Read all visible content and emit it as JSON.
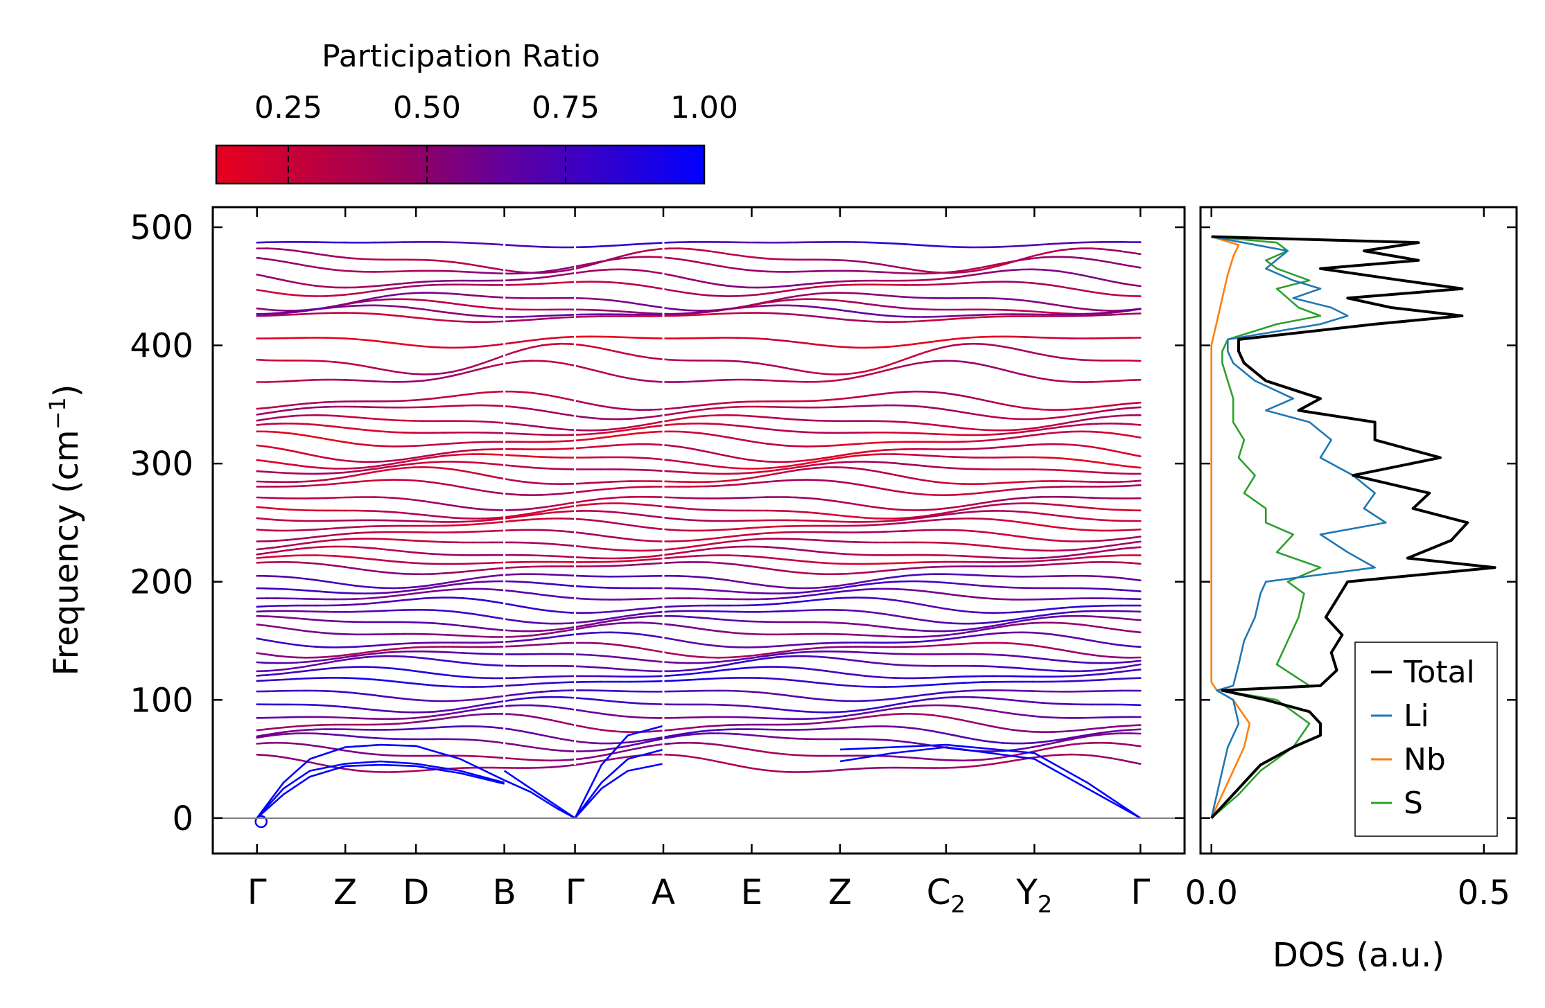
{
  "colors": {
    "low": "#e8001d",
    "high": "#0000ff",
    "axis": "#000000",
    "zero_line": "#808080",
    "total": "#000000",
    "Li": "#1f77b4",
    "Nb": "#ff7f0e",
    "S": "#2ca02c"
  },
  "chart_data": [
    {
      "type": "line",
      "title": "",
      "ylabel": "Frequency (cm",
      "ylabel_sup": "−1",
      "ylabel_close": ")",
      "ylim": [
        -30,
        517
      ],
      "yticks": [
        0,
        100,
        200,
        300,
        400,
        500
      ],
      "ytick_labels": [
        "0",
        "100",
        "200",
        "300",
        "400",
        "500"
      ],
      "xlim": [
        -0.5,
        10.5
      ],
      "kpoints": [
        {
          "label": "Γ",
          "sub": "",
          "x": 0.0
        },
        {
          "label": "Z",
          "sub": "",
          "x": 1.0
        },
        {
          "label": "D",
          "sub": "",
          "x": 1.8
        },
        {
          "label": "B",
          "sub": "",
          "x": 2.8
        },
        {
          "label": "Γ",
          "sub": "",
          "x": 3.6
        },
        {
          "label": "A",
          "sub": "",
          "x": 4.6
        },
        {
          "label": "E",
          "sub": "",
          "x": 5.6
        },
        {
          "label": "Z",
          "sub": "",
          "x": 6.6
        },
        {
          "label": "C",
          "sub": "2",
          "x": 7.8
        },
        {
          "label": "Y",
          "sub": "2",
          "x": 8.8
        },
        {
          "label": "Γ",
          "sub": "",
          "x": 10.0
        }
      ],
      "acoustic_branches": [
        {
          "x": [
            0,
            0.3,
            0.6,
            1.0,
            1.4,
            1.8,
            2.3,
            2.8
          ],
          "y": [
            0,
            30,
            50,
            60,
            62,
            61,
            50,
            32
          ]
        },
        {
          "x": [
            0,
            0.3,
            0.6,
            1.0,
            1.4,
            1.8,
            2.3,
            2.8
          ],
          "y": [
            0,
            25,
            40,
            46,
            48,
            46,
            40,
            30
          ]
        },
        {
          "x": [
            0,
            0.3,
            0.6,
            1.0,
            1.4,
            1.8,
            2.3,
            2.8
          ],
          "y": [
            0,
            20,
            35,
            44,
            45,
            44,
            38,
            29
          ]
        },
        {
          "x": [
            2.8,
            3.1,
            3.4,
            3.6
          ],
          "y": [
            40,
            25,
            10,
            0
          ]
        },
        {
          "x": [
            2.8,
            3.1,
            3.4,
            3.6
          ],
          "y": [
            32,
            22,
            8,
            0
          ]
        },
        {
          "x": [
            3.6,
            3.9,
            4.2,
            4.6
          ],
          "y": [
            0,
            45,
            70,
            78
          ]
        },
        {
          "x": [
            3.6,
            3.9,
            4.2,
            4.6
          ],
          "y": [
            0,
            30,
            50,
            58
          ]
        },
        {
          "x": [
            3.6,
            3.9,
            4.2,
            4.6
          ],
          "y": [
            0,
            25,
            40,
            46
          ]
        },
        {
          "x": [
            6.6,
            7.2,
            7.8,
            8.8,
            9.4,
            10.0
          ],
          "y": [
            58,
            60,
            62,
            55,
            30,
            0
          ]
        },
        {
          "x": [
            6.6,
            7.2,
            7.8,
            8.8,
            9.4,
            10.0
          ],
          "y": [
            48,
            55,
            60,
            50,
            25,
            0
          ]
        }
      ],
      "optical_bands": [
        {
          "base": 486,
          "amp": 2,
          "pr": 0.75
        },
        {
          "base": 472,
          "amp": 8,
          "pr": 0.35
        },
        {
          "base": 466,
          "amp": 6,
          "pr": 0.4
        },
        {
          "base": 456,
          "amp": 6,
          "pr": 0.45
        },
        {
          "base": 449,
          "amp": 5,
          "pr": 0.3
        },
        {
          "base": 438,
          "amp": 6,
          "pr": 0.5
        },
        {
          "base": 432,
          "amp": 5,
          "pr": 0.35
        },
        {
          "base": 428,
          "amp": 4,
          "pr": 0.55
        },
        {
          "base": 424,
          "amp": 3,
          "pr": 0.3
        },
        {
          "base": 404,
          "amp": 4,
          "pr": 0.15
        },
        {
          "base": 388,
          "amp": 10,
          "pr": 0.3
        },
        {
          "base": 375,
          "amp": 8,
          "pr": 0.35
        },
        {
          "base": 353,
          "amp": 6,
          "pr": 0.3
        },
        {
          "base": 345,
          "amp": 5,
          "pr": 0.35
        },
        {
          "base": 335,
          "amp": 5,
          "pr": 0.3
        },
        {
          "base": 328,
          "amp": 4,
          "pr": 0.25
        },
        {
          "base": 320,
          "amp": 5,
          "pr": 0.2
        },
        {
          "base": 310,
          "amp": 6,
          "pr": 0.25
        },
        {
          "base": 303,
          "amp": 5,
          "pr": 0.2
        },
        {
          "base": 296,
          "amp": 4,
          "pr": 0.3
        },
        {
          "base": 288,
          "amp": 6,
          "pr": 0.25
        },
        {
          "base": 280,
          "amp": 5,
          "pr": 0.3
        },
        {
          "base": 268,
          "amp": 5,
          "pr": 0.35
        },
        {
          "base": 260,
          "amp": 5,
          "pr": 0.25
        },
        {
          "base": 254,
          "amp": 4,
          "pr": 0.3
        },
        {
          "base": 248,
          "amp": 4,
          "pr": 0.25
        },
        {
          "base": 240,
          "amp": 4,
          "pr": 0.3
        },
        {
          "base": 232,
          "amp": 4,
          "pr": 0.3
        },
        {
          "base": 224,
          "amp": 4,
          "pr": 0.35
        },
        {
          "base": 218,
          "amp": 3,
          "pr": 0.25
        },
        {
          "base": 212,
          "amp": 4,
          "pr": 0.4
        },
        {
          "base": 202,
          "amp": 5,
          "pr": 0.65
        },
        {
          "base": 195,
          "amp": 4,
          "pr": 0.7
        },
        {
          "base": 188,
          "amp": 4,
          "pr": 0.6
        },
        {
          "base": 180,
          "amp": 5,
          "pr": 0.75
        },
        {
          "base": 172,
          "amp": 5,
          "pr": 0.7
        },
        {
          "base": 165,
          "amp": 5,
          "pr": 0.6
        },
        {
          "base": 158,
          "amp": 5,
          "pr": 0.5
        },
        {
          "base": 150,
          "amp": 5,
          "pr": 0.7
        },
        {
          "base": 143,
          "amp": 5,
          "pr": 0.4
        },
        {
          "base": 137,
          "amp": 4,
          "pr": 0.65
        },
        {
          "base": 130,
          "amp": 5,
          "pr": 0.7
        },
        {
          "base": 122,
          "amp": 4,
          "pr": 0.8
        },
        {
          "base": 115,
          "amp": 3,
          "pr": 0.85
        },
        {
          "base": 105,
          "amp": 4,
          "pr": 0.7
        },
        {
          "base": 96,
          "amp": 5,
          "pr": 0.75
        },
        {
          "base": 88,
          "amp": 5,
          "pr": 0.6
        },
        {
          "base": 80,
          "amp": 6,
          "pr": 0.45
        },
        {
          "base": 72,
          "amp": 6,
          "pr": 0.65
        },
        {
          "base": 65,
          "amp": 6,
          "pr": 0.6
        },
        {
          "base": 55,
          "amp": 6,
          "pr": 0.45
        },
        {
          "base": 45,
          "amp": 6,
          "pr": 0.4
        }
      ],
      "colorbar": {
        "label": "Participation Ratio",
        "range": [
          0.12,
          1.0
        ],
        "ticks": [
          0.25,
          0.5,
          0.75,
          1.0
        ],
        "tick_labels": [
          "0.25",
          "0.50",
          "0.75",
          "1.00"
        ]
      }
    },
    {
      "type": "line",
      "xlabel": "DOS (a.u.)",
      "xlim": [
        -0.02,
        0.56
      ],
      "xticks": [
        0.0,
        0.5
      ],
      "xtick_labels": [
        "0.0",
        "0.5"
      ],
      "legend_position": "lower-right",
      "series": [
        {
          "name": "Total",
          "color_key": "total",
          "y": [
            0,
            15,
            30,
            45,
            60,
            70,
            80,
            90,
            100,
            108,
            112,
            125,
            140,
            155,
            170,
            185,
            200,
            212,
            220,
            235,
            250,
            262,
            275,
            290,
            305,
            320,
            335,
            345,
            355,
            370,
            385,
            395,
            405,
            418,
            425,
            432,
            440,
            448,
            455,
            465,
            472,
            480,
            487,
            492
          ],
          "x": [
            0.0,
            0.03,
            0.06,
            0.09,
            0.15,
            0.2,
            0.2,
            0.18,
            0.1,
            0.02,
            0.2,
            0.23,
            0.22,
            0.24,
            0.21,
            0.23,
            0.25,
            0.52,
            0.36,
            0.44,
            0.47,
            0.37,
            0.4,
            0.26,
            0.42,
            0.3,
            0.3,
            0.16,
            0.2,
            0.1,
            0.06,
            0.05,
            0.05,
            0.3,
            0.46,
            0.33,
            0.25,
            0.46,
            0.35,
            0.2,
            0.38,
            0.28,
            0.38,
            0.0
          ]
        },
        {
          "name": "Li",
          "color_key": "Li",
          "y": [
            0,
            20,
            40,
            60,
            80,
            100,
            108,
            112,
            130,
            150,
            170,
            190,
            200,
            212,
            225,
            240,
            250,
            262,
            275,
            290,
            305,
            320,
            335,
            345,
            355,
            370,
            385,
            395,
            405,
            418,
            425,
            432,
            440,
            448,
            455,
            465,
            480,
            492
          ],
          "x": [
            0.0,
            0.01,
            0.02,
            0.03,
            0.05,
            0.04,
            0.01,
            0.04,
            0.05,
            0.06,
            0.08,
            0.09,
            0.1,
            0.3,
            0.25,
            0.2,
            0.32,
            0.28,
            0.3,
            0.26,
            0.2,
            0.22,
            0.18,
            0.1,
            0.15,
            0.08,
            0.04,
            0.03,
            0.03,
            0.2,
            0.25,
            0.22,
            0.15,
            0.2,
            0.15,
            0.1,
            0.14,
            0.0
          ]
        },
        {
          "name": "Nb",
          "color_key": "Nb",
          "y": [
            0,
            20,
            40,
            60,
            80,
            100,
            108,
            115,
            150,
            200,
            250,
            300,
            350,
            400,
            420,
            440,
            460,
            475,
            485,
            492
          ],
          "x": [
            0.0,
            0.02,
            0.04,
            0.06,
            0.07,
            0.04,
            0.01,
            0.0,
            0.0,
            0.0,
            0.0,
            0.0,
            0.0,
            0.0,
            0.01,
            0.02,
            0.03,
            0.04,
            0.05,
            0.0
          ]
        },
        {
          "name": "S",
          "color_key": "S",
          "y": [
            0,
            20,
            40,
            60,
            80,
            100,
            108,
            112,
            130,
            150,
            170,
            190,
            200,
            212,
            225,
            240,
            250,
            262,
            275,
            290,
            305,
            320,
            335,
            345,
            355,
            370,
            385,
            395,
            405,
            418,
            425,
            432,
            440,
            448,
            455,
            465,
            472,
            480,
            487,
            492
          ],
          "x": [
            0.0,
            0.05,
            0.09,
            0.15,
            0.18,
            0.12,
            0.02,
            0.18,
            0.12,
            0.14,
            0.16,
            0.17,
            0.14,
            0.2,
            0.12,
            0.15,
            0.1,
            0.1,
            0.06,
            0.08,
            0.05,
            0.06,
            0.04,
            0.04,
            0.04,
            0.03,
            0.02,
            0.02,
            0.03,
            0.12,
            0.2,
            0.16,
            0.14,
            0.12,
            0.18,
            0.12,
            0.1,
            0.14,
            0.12,
            0.0
          ]
        }
      ]
    }
  ]
}
